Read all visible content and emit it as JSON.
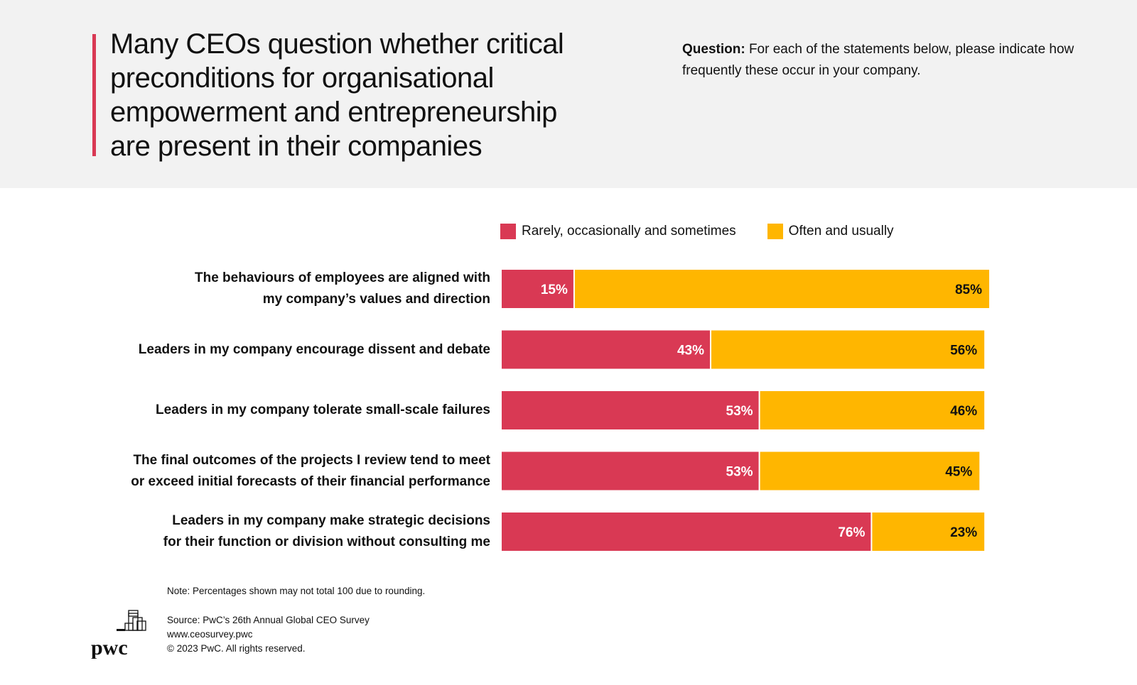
{
  "header": {
    "title": "Many CEOs question whether critical preconditions for organisational empowerment and entrepreneurship are present in their companies",
    "question_label": "Question:",
    "question_text": " For each of the statements below, please indicate how frequently these occur in your company."
  },
  "colors": {
    "rarely": "#d93954",
    "often": "#ffb600",
    "header_bg": "#f2f2f2",
    "accent": "#d93954"
  },
  "chart_data": {
    "type": "bar",
    "orientation": "horizontal-stacked",
    "title": "Many CEOs question whether critical preconditions for organisational empowerment and entrepreneurship are present in their companies",
    "xlabel": "",
    "ylabel": "",
    "xlim": [
      0,
      100
    ],
    "grid": false,
    "legend_position": "top",
    "categories": [
      "The behaviours of employees are aligned with my company’s values and direction",
      "Leaders in my company encourage dissent and debate",
      "Leaders in my company tolerate small-scale failures",
      "The final outcomes of the projects I review tend to meet or exceed initial forecasts of their financial performance",
      "Leaders in my company make strategic decisions for their function or division without consulting me"
    ],
    "category_lines": [
      [
        "The behaviours of employees are aligned with",
        "my company’s values and direction"
      ],
      [
        "Leaders in my company encourage dissent and debate"
      ],
      [
        "Leaders in my company tolerate small-scale failures"
      ],
      [
        "The final outcomes of the projects I review tend to meet",
        "or exceed initial forecasts of their financial performance"
      ],
      [
        "Leaders in my company make strategic decisions",
        "for their function or division without consulting me"
      ]
    ],
    "series": [
      {
        "name": "Rarely, occasionally and sometimes",
        "color": "#d93954",
        "label_color": "#ffffff",
        "values": [
          15,
          43,
          53,
          53,
          76
        ]
      },
      {
        "name": "Often and usually",
        "color": "#ffb600",
        "label_color": "#111111",
        "values": [
          85,
          56,
          46,
          45,
          23
        ]
      }
    ],
    "value_suffix": "%"
  },
  "footer": {
    "note": "Note: Percentages shown may not total 100 due to rounding.",
    "source": "Source: PwC’s 26th Annual Global CEO Survey",
    "url": "www.ceosurvey.pwc",
    "copyright": "© 2023 PwC. All rights reserved.",
    "logo_text": "pwc"
  }
}
